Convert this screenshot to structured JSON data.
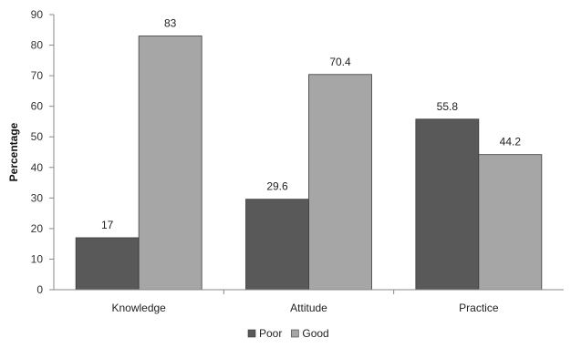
{
  "chart_data": {
    "type": "bar",
    "title": "",
    "xlabel": "",
    "ylabel": "Percentage",
    "categories": [
      "Knowledge",
      "Attitude",
      "Practice"
    ],
    "series": [
      {
        "name": "Poor",
        "values": [
          17,
          29.6,
          55.8
        ],
        "color": "#595959"
      },
      {
        "name": "Good",
        "values": [
          83,
          70.4,
          44.2
        ],
        "color": "#a6a6a6"
      }
    ],
    "ylim": [
      0,
      90
    ],
    "yticks": [
      0,
      10,
      20,
      30,
      40,
      50,
      60,
      70,
      80,
      90
    ],
    "grid": false,
    "legend_position": "bottom"
  }
}
